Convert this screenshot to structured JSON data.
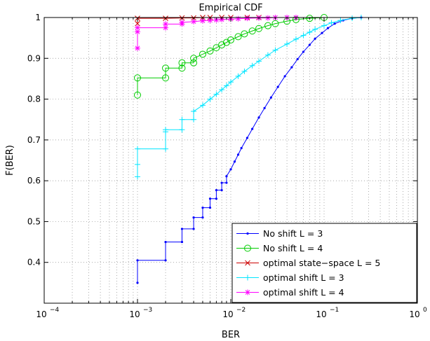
{
  "chart_data": {
    "type": "line",
    "title": "Empirical CDF",
    "xlabel": "BER",
    "ylabel": "F(BER)",
    "xscale": "log",
    "xlim": [
      0.0001,
      1
    ],
    "ylim": [
      0.3,
      1
    ],
    "x_ticks": [
      {
        "base": "10",
        "exp": "−4"
      },
      {
        "base": "10",
        "exp": "−3"
      },
      {
        "base": "10",
        "exp": "−2"
      },
      {
        "base": "10",
        "exp": "−1"
      },
      {
        "base": "10",
        "exp": "0"
      }
    ],
    "y_ticks": [
      "0.4",
      "0.5",
      "0.6",
      "0.7",
      "0.8",
      "0.9",
      "1"
    ],
    "grid": true,
    "legend_position": "bottom-right",
    "series": [
      {
        "name": "No shift L = 3",
        "color": "#0000ff",
        "marker": "dot",
        "x": [
          0.001,
          0.001,
          0.002,
          0.002,
          0.003,
          0.003,
          0.004,
          0.004,
          0.005,
          0.005,
          0.006,
          0.006,
          0.007,
          0.007,
          0.008,
          0.008,
          0.009,
          0.009,
          0.01,
          0.011,
          0.012,
          0.013,
          0.015,
          0.017,
          0.02,
          0.023,
          0.027,
          0.032,
          0.038,
          0.045,
          0.052,
          0.06,
          0.07,
          0.08,
          0.095,
          0.11,
          0.13,
          0.16,
          0.2,
          0.25
        ],
        "y": [
          0.35,
          0.405,
          0.405,
          0.45,
          0.45,
          0.482,
          0.482,
          0.51,
          0.51,
          0.534,
          0.534,
          0.556,
          0.556,
          0.577,
          0.577,
          0.595,
          0.595,
          0.611,
          0.628,
          0.647,
          0.664,
          0.68,
          0.705,
          0.727,
          0.755,
          0.778,
          0.804,
          0.83,
          0.856,
          0.878,
          0.898,
          0.916,
          0.933,
          0.948,
          0.962,
          0.974,
          0.985,
          0.993,
          0.998,
          1.0
        ]
      },
      {
        "name": "No shift L = 4",
        "color": "#00cc00",
        "marker": "circle",
        "x": [
          0.001,
          0.001,
          0.002,
          0.002,
          0.003,
          0.003,
          0.004,
          0.004,
          0.005,
          0.006,
          0.007,
          0.008,
          0.009,
          0.01,
          0.012,
          0.014,
          0.017,
          0.02,
          0.025,
          0.03,
          0.04,
          0.05,
          0.07,
          0.1
        ],
        "y": [
          0.81,
          0.852,
          0.852,
          0.876,
          0.876,
          0.889,
          0.889,
          0.9,
          0.91,
          0.918,
          0.926,
          0.933,
          0.939,
          0.945,
          0.953,
          0.96,
          0.967,
          0.973,
          0.98,
          0.985,
          0.991,
          0.995,
          0.998,
          1.0
        ]
      },
      {
        "name": "optimal state−space L = 5",
        "color": "#cc0000",
        "marker": "x",
        "x": [
          0.001,
          0.001,
          0.002,
          0.003,
          0.004,
          0.005,
          0.006,
          0.008,
          0.01,
          0.015,
          0.02
        ],
        "y": [
          0.985,
          0.998,
          0.998,
          0.999,
          0.999,
          1.0,
          1.0,
          1.0,
          1.0,
          1.0,
          1.0
        ]
      },
      {
        "name": "optimal shift L = 3",
        "color": "#00e5ff",
        "marker": "plus",
        "x": [
          0.001,
          0.001,
          0.001,
          0.002,
          0.002,
          0.002,
          0.003,
          0.003,
          0.004,
          0.004,
          0.005,
          0.006,
          0.007,
          0.008,
          0.009,
          0.01,
          0.012,
          0.014,
          0.017,
          0.02,
          0.025,
          0.03,
          0.04,
          0.05,
          0.06,
          0.07,
          0.08,
          0.1,
          0.12,
          0.15,
          0.2,
          0.25
        ],
        "y": [
          0.61,
          0.64,
          0.678,
          0.678,
          0.72,
          0.725,
          0.725,
          0.75,
          0.75,
          0.77,
          0.785,
          0.8,
          0.812,
          0.823,
          0.833,
          0.842,
          0.856,
          0.868,
          0.882,
          0.893,
          0.908,
          0.92,
          0.935,
          0.947,
          0.956,
          0.964,
          0.971,
          0.98,
          0.987,
          0.993,
          0.998,
          1.0
        ]
      },
      {
        "name": "optimal shift L = 4",
        "color": "#ff00ff",
        "marker": "star",
        "x": [
          0.001,
          0.001,
          0.001,
          0.002,
          0.002,
          0.003,
          0.003,
          0.004,
          0.005,
          0.006,
          0.007,
          0.008,
          0.01,
          0.012,
          0.015,
          0.02,
          0.025,
          0.03,
          0.04,
          0.05
        ],
        "y": [
          0.925,
          0.965,
          0.975,
          0.975,
          0.984,
          0.984,
          0.988,
          0.99,
          0.992,
          0.993,
          0.994,
          0.995,
          0.996,
          0.997,
          0.998,
          0.999,
          0.999,
          1.0,
          1.0,
          1.0
        ]
      }
    ]
  }
}
